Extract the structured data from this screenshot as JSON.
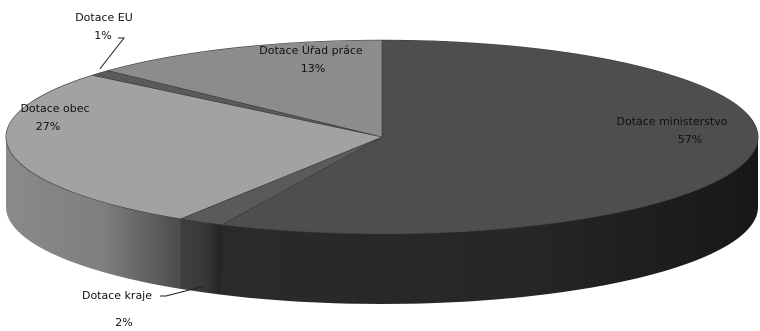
{
  "chart_data": {
    "type": "pie",
    "style": "3d",
    "categories": [
      "Dotace ministerstvo",
      "Dotace kraje",
      "Dotace obec",
      "Dotace EU",
      "Dotace Úřad práce"
    ],
    "values": [
      57,
      2,
      27,
      1,
      13
    ],
    "value_labels": [
      "57%",
      "2%",
      "27%",
      "1%",
      "13%"
    ],
    "colors": [
      "#4e4e4e",
      "#5a5a5a",
      "#a2a2a2",
      "#5a5a5a",
      "#8c8c8c"
    ],
    "side_colors": [
      "#2a2a2a",
      "#3e3e3e",
      "#8a8a8a",
      "#3e3e3e",
      "#6f6f6f"
    ],
    "legend": "none",
    "data_labels": true
  }
}
